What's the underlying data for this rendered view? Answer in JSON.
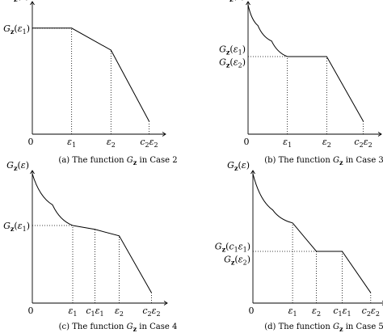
{
  "chart_data": [
    {
      "id": "a",
      "type": "line",
      "caption": "(a) The function G_z in Case 2",
      "y_axis_label": "G_z(ε)",
      "origin_label": "0",
      "x": [
        "ε1",
        "ε2",
        "c2ε2"
      ],
      "x_ticks": [
        {
          "label": "ε1",
          "x": 1.0
        },
        {
          "label": "ε2",
          "x": 2.0
        },
        {
          "label": "c2ε2",
          "x": 2.97
        }
      ],
      "y_ticks": [
        {
          "label": "Gz(ε1)",
          "y": 0.82
        }
      ],
      "segments": [
        {
          "kind": "line",
          "points": [
            [
              0,
              0.82
            ],
            [
              1.0,
              0.82
            ],
            [
              2.0,
              0.65
            ],
            [
              2.97,
              0.1
            ]
          ]
        }
      ],
      "guides": [
        {
          "x": 1.0,
          "y": 0.82
        },
        {
          "x": 2.0,
          "y": 0.65
        },
        {
          "x": 2.97,
          "y": 0.1
        }
      ],
      "xlim": [
        0,
        3.35
      ],
      "ylim": [
        0,
        1.0
      ]
    },
    {
      "id": "b",
      "type": "line",
      "caption": "(b) The function G_z in Case 3",
      "y_axis_label": "G_z(ε)",
      "origin_label": "0",
      "x": [
        "ε1",
        "ε2",
        "c2ε2"
      ],
      "x_ticks": [
        {
          "label": "ε1",
          "x": 1.0
        },
        {
          "label": "ε2",
          "x": 2.0
        },
        {
          "label": "c2ε2",
          "x": 2.93
        }
      ],
      "y_ticks": [
        {
          "label": "Gz(ε1)",
          "y": 0.66
        },
        {
          "label": "Gz(ε2)",
          "y": 0.56
        }
      ],
      "segments": [
        {
          "kind": "curve",
          "points": [
            [
              0,
              1.0
            ],
            [
              0.25,
              0.84
            ],
            [
              0.6,
              0.72
            ],
            [
              1.0,
              0.6
            ]
          ]
        },
        {
          "kind": "line",
          "points": [
            [
              1.0,
              0.6
            ],
            [
              2.0,
              0.6
            ],
            [
              2.93,
              0.1
            ]
          ]
        }
      ],
      "guides": [
        {
          "x": 1.0,
          "y": 0.6
        },
        {
          "x": 2.0,
          "y": 0.6
        },
        {
          "x": 2.93,
          "y": 0.1
        }
      ],
      "xlim": [
        0,
        3.35
      ],
      "ylim": [
        0,
        1.0
      ]
    },
    {
      "id": "c",
      "type": "line",
      "caption": "(c) The function G_z in Case 4",
      "y_axis_label": "G_z(ε)",
      "origin_label": "0",
      "x": [
        "ε1",
        "c1ε1",
        "ε2",
        "c2ε2"
      ],
      "x_ticks": [
        {
          "label": "ε1",
          "x": 1.0
        },
        {
          "label": "c1ε1",
          "x": 1.55
        },
        {
          "label": "ε2",
          "x": 2.15
        },
        {
          "label": "c2ε2",
          "x": 2.95
        }
      ],
      "y_ticks": [
        {
          "label": "Gz(ε1)",
          "y": 0.6
        }
      ],
      "segments": [
        {
          "kind": "curve",
          "points": [
            [
              0,
              1.0
            ],
            [
              0.5,
              0.76
            ],
            [
              1.0,
              0.6
            ]
          ]
        },
        {
          "kind": "line",
          "points": [
            [
              1.0,
              0.6
            ],
            [
              1.55,
              0.57
            ],
            [
              2.15,
              0.52
            ],
            [
              2.95,
              0.08
            ]
          ]
        }
      ],
      "guides": [
        {
          "x": 1.0,
          "y": 0.6
        },
        {
          "x": 1.55,
          "y": 0.57
        },
        {
          "x": 2.15,
          "y": 0.52
        },
        {
          "x": 2.95,
          "y": 0.08
        }
      ],
      "xlim": [
        0,
        3.3
      ],
      "ylim": [
        0,
        1.0
      ]
    },
    {
      "id": "d",
      "type": "line",
      "caption": "(d) The function G_z in Case 5",
      "y_axis_label": "G_z(ε)",
      "origin_label": "0",
      "x": [
        "ε1",
        "ε2",
        "c1ε1",
        "c2ε2"
      ],
      "x_ticks": [
        {
          "label": "ε1",
          "x": 1.0
        },
        {
          "label": "ε2",
          "x": 1.6
        },
        {
          "label": "c1ε1",
          "x": 2.25
        },
        {
          "label": "c2ε2",
          "x": 2.97
        }
      ],
      "y_ticks": [
        {
          "label": "Gz(c1ε1)",
          "y": 0.44
        },
        {
          "label": "Gz(ε2)",
          "y": 0.34
        }
      ],
      "segments": [
        {
          "kind": "curve",
          "points": [
            [
              0,
              1.0
            ],
            [
              0.5,
              0.72
            ],
            [
              1.0,
              0.62
            ]
          ]
        },
        {
          "kind": "line",
          "points": [
            [
              1.0,
              0.62
            ],
            [
              1.6,
              0.4
            ],
            [
              2.25,
              0.4
            ],
            [
              2.97,
              0.08
            ]
          ]
        }
      ],
      "guides": [
        {
          "x": 1.0,
          "y": 0.62
        },
        {
          "x": 1.6,
          "y": 0.4
        },
        {
          "x": 2.25,
          "y": 0.4
        },
        {
          "x": 2.97,
          "y": 0.08
        }
      ],
      "xlim": [
        0,
        3.3
      ],
      "ylim": [
        0,
        1.0
      ]
    }
  ]
}
